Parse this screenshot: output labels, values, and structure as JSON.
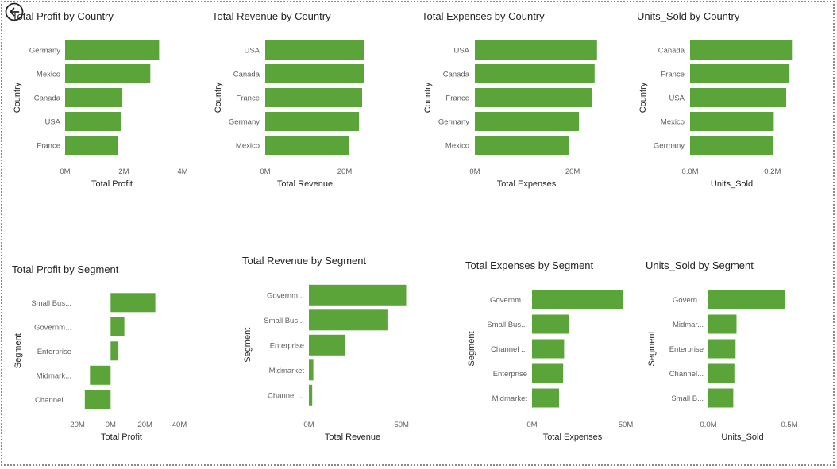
{
  "icons": {
    "back": "back-arrow-icon"
  },
  "colors": {
    "bar": "#5ba43a"
  },
  "chart_data": [
    {
      "type": "bar",
      "orientation": "horizontal",
      "title": "Total Profit by Country",
      "xlabel": "Total Profit",
      "ylabel": "Country",
      "categories": [
        "Germany",
        "Mexico",
        "Canada",
        "USA",
        "France"
      ],
      "values": [
        3.2,
        2.9,
        1.95,
        1.9,
        1.8
      ],
      "xlim": [
        0,
        4
      ],
      "ticks": [
        0,
        2,
        4
      ],
      "tick_labels": [
        "0M",
        "2M",
        "4M"
      ],
      "unit": "M"
    },
    {
      "type": "bar",
      "orientation": "horizontal",
      "title": "Total Revenue by Country",
      "xlabel": "Total Revenue",
      "ylabel": "Country",
      "categories": [
        "USA",
        "Canada",
        "France",
        "Germany",
        "Mexico"
      ],
      "values": [
        25,
        24.9,
        24.4,
        23.6,
        21
      ],
      "xlim": [
        0,
        26
      ],
      "ticks": [
        0,
        20
      ],
      "tick_labels": [
        "0M",
        "20M"
      ],
      "unit": "M"
    },
    {
      "type": "bar",
      "orientation": "horizontal",
      "title": "Total Expenses by Country",
      "xlabel": "Total Expenses",
      "ylabel": "Country",
      "categories": [
        "USA",
        "Canada",
        "France",
        "Germany",
        "Mexico"
      ],
      "values": [
        25,
        24.5,
        23.9,
        21.3,
        19.3
      ],
      "xlim": [
        0,
        26
      ],
      "ticks": [
        0,
        20
      ],
      "tick_labels": [
        "0M",
        "20M"
      ],
      "unit": "M"
    },
    {
      "type": "bar",
      "orientation": "horizontal",
      "title": "Units_Sold by Country",
      "xlabel": "Units_Sold",
      "ylabel": "Country",
      "categories": [
        "Canada",
        "France",
        "USA",
        "Mexico",
        "Germany"
      ],
      "values": [
        0.247,
        0.241,
        0.233,
        0.203,
        0.201
      ],
      "xlim": [
        0,
        0.26
      ],
      "ticks": [
        0,
        0.2
      ],
      "tick_labels": [
        "0.0M",
        "0.2M"
      ],
      "unit": "M"
    },
    {
      "type": "bar",
      "orientation": "horizontal",
      "title": "Total Profit by Segment",
      "xlabel": "Total Profit",
      "ylabel": "Segment",
      "categories": [
        "Small Bus...",
        "Governm...",
        "Enterprise",
        "Midmark...",
        "Channel ..."
      ],
      "values": [
        26,
        8,
        4.5,
        -12,
        -15
      ],
      "xlim": [
        -20,
        40
      ],
      "ticks": [
        -20,
        0,
        20,
        40
      ],
      "tick_labels": [
        "-20M",
        "0M",
        "20M",
        "40M"
      ],
      "unit": "M"
    },
    {
      "type": "bar",
      "orientation": "horizontal",
      "title": "Total Revenue by Segment",
      "xlabel": "Total Revenue",
      "ylabel": "Segment",
      "categories": [
        "Governm...",
        "Small Bus...",
        "Enterprise",
        "Midmarket",
        "Channel ..."
      ],
      "values": [
        52.5,
        42.4,
        19.6,
        2.4,
        1.8
      ],
      "xlim": [
        0,
        54
      ],
      "ticks": [
        0,
        50
      ],
      "tick_labels": [
        "0M",
        "50M"
      ],
      "unit": "M"
    },
    {
      "type": "bar",
      "orientation": "horizontal",
      "title": "Total Expenses by Segment",
      "xlabel": "Total Expenses",
      "ylabel": "Segment",
      "categories": [
        "Governm...",
        "Small Bus...",
        "Channel ...",
        "Enterprise",
        "Midmarket"
      ],
      "values": [
        48.5,
        19.6,
        17.1,
        16.6,
        14.4
      ],
      "xlim": [
        0,
        50
      ],
      "ticks": [
        0,
        50
      ],
      "tick_labels": [
        "0M",
        "50M"
      ],
      "unit": "M"
    },
    {
      "type": "bar",
      "orientation": "horizontal",
      "title": "Units_Sold by Segment",
      "xlabel": "Units_Sold",
      "ylabel": "Segment",
      "categories": [
        "Govern...",
        "Midmar...",
        "Enterprise",
        "Channel...",
        "Small B..."
      ],
      "values": [
        0.474,
        0.174,
        0.168,
        0.161,
        0.154
      ],
      "xlim": [
        0,
        0.5
      ],
      "ticks": [
        0,
        0.5
      ],
      "tick_labels": [
        "0.0M",
        "0.5M"
      ],
      "unit": "M"
    }
  ]
}
